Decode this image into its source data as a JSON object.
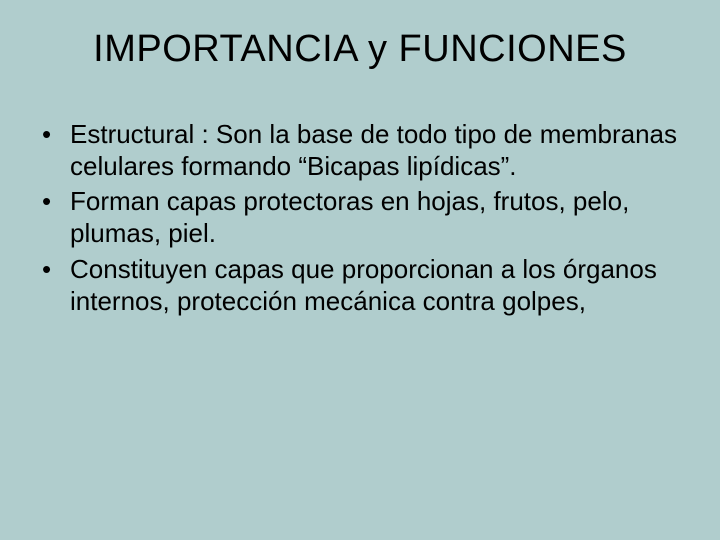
{
  "slide": {
    "background_color": "#b0cdcd",
    "text_color": "#000000",
    "title": "IMPORTANCIA y FUNCIONES",
    "title_fontsize": 38,
    "body_fontsize": 26,
    "font_family": "Arial",
    "bullets": [
      "Estructural : Son la base de todo tipo de membranas celulares formando “Bicapas lipídicas”.",
      "Forman capas protectoras en hojas, frutos, pelo, plumas, piel.",
      "Constituyen capas que proporcionan a los órganos internos, protección  mecánica contra golpes,"
    ]
  }
}
